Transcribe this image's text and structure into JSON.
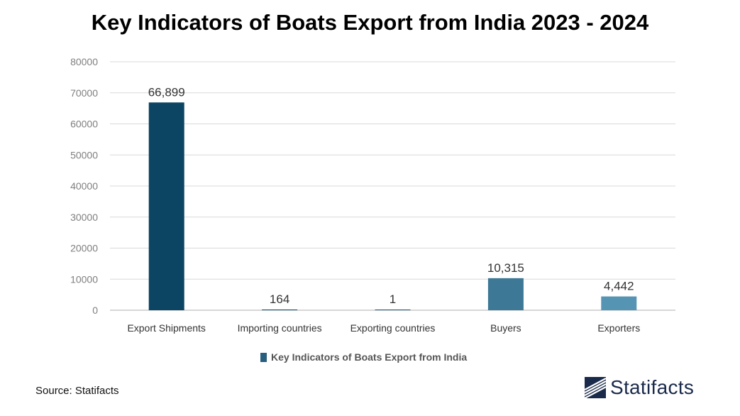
{
  "title": "Key Indicators of Boats Export from India 2023 - 2024",
  "source": "Source: Statifacts",
  "brand": "Statifacts",
  "chart_data": {
    "type": "bar",
    "title": "Key Indicators of Boats Export from India 2023 - 2024",
    "categories": [
      "Export Shipments",
      "Importing countries",
      "Exporting countries",
      "Buyers",
      "Exporters"
    ],
    "series": [
      {
        "name": "Key Indicators of Boats Export from India",
        "values": [
          66899,
          164,
          1,
          10315,
          4442
        ]
      }
    ],
    "data_labels": [
      "66,899",
      "164",
      "1",
      "10,315",
      "4,442"
    ],
    "bar_colors": [
      "#0b4563",
      "#0f4f6e",
      "#1d5d7c",
      "#3d7896",
      "#5595b3"
    ],
    "ylim": [
      0,
      80000
    ],
    "yticks": [
      0,
      10000,
      20000,
      30000,
      40000,
      50000,
      60000,
      70000,
      80000
    ],
    "grid": true,
    "legend_position": "bottom",
    "legend_color": "#285f7e",
    "xlabel": "",
    "ylabel": ""
  }
}
